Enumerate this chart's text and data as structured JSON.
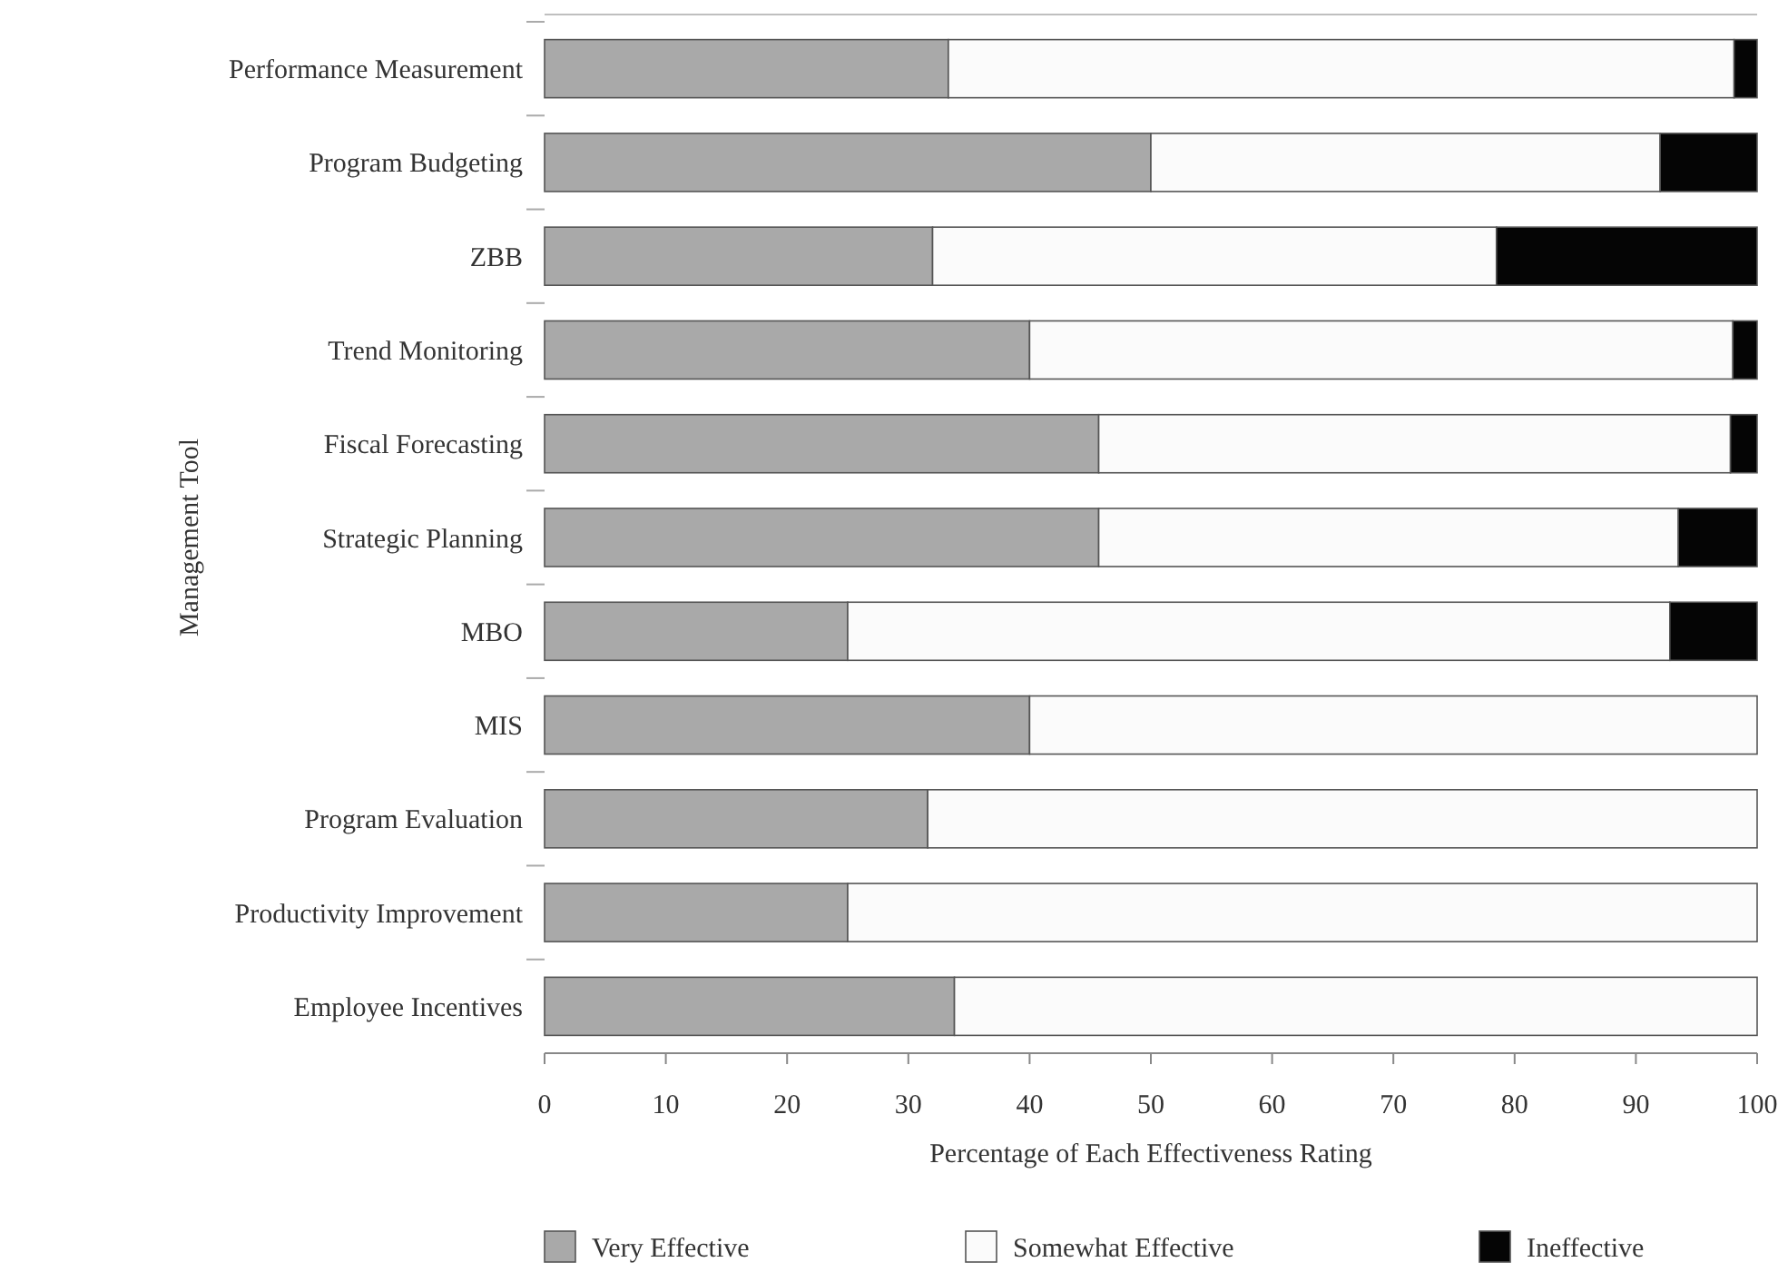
{
  "chart_data": {
    "type": "bar",
    "orientation": "horizontal",
    "stacked": true,
    "ylabel": "Management Tool",
    "xlabel": "Percentage of Each Effectiveness Rating",
    "categories": [
      "Performance Measurement",
      "Program Budgeting",
      "ZBB",
      "Trend Monitoring",
      "Fiscal Forecasting",
      "Strategic Planning",
      "MBO",
      "MIS",
      "Program Evaluation",
      "Productivity Improvement",
      "Employee Incentives"
    ],
    "series": [
      {
        "name": "Very Effective",
        "color": "#a9a9a9",
        "values": [
          33.3,
          50,
          32,
          40,
          45.7,
          45.7,
          25,
          40,
          31.6,
          25,
          33.8
        ]
      },
      {
        "name": "Somewhat Effective",
        "color": "#fbfbfb",
        "values": [
          64.8,
          42,
          46.5,
          58,
          52.1,
          47.8,
          67.8,
          60,
          68.4,
          75,
          66.2
        ]
      },
      {
        "name": "Ineffective",
        "color": "#050505",
        "values": [
          1.9,
          8,
          21.5,
          2,
          2.2,
          6.5,
          7.2,
          0,
          0,
          0,
          0
        ]
      }
    ],
    "xlim": [
      0,
      100
    ],
    "xticks": [
      0,
      10,
      20,
      30,
      40,
      50,
      60,
      70,
      80,
      90,
      100
    ],
    "grid": false,
    "legend": "bottom"
  }
}
